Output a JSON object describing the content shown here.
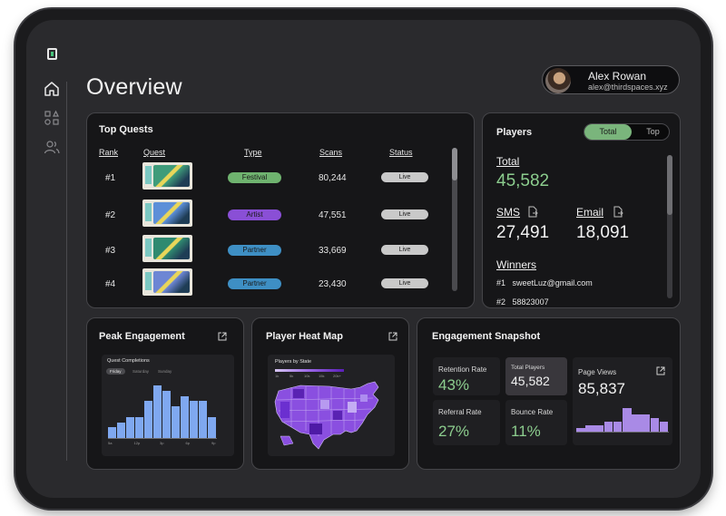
{
  "header": {
    "title": "Overview",
    "user": {
      "name": "Alex Rowan",
      "email": "alex@thirdspaces.xyz"
    }
  },
  "sidebar": {
    "icons": [
      "home-icon",
      "shapes-icon",
      "users-icon"
    ]
  },
  "top_quests": {
    "title": "Top Quests",
    "columns": [
      "Rank",
      "Quest",
      "Type",
      "Scans",
      "Status"
    ],
    "rows": [
      {
        "rank": "#1",
        "type": "Festival",
        "type_color": "#6fb36f",
        "scans": "80,244",
        "status": "Live",
        "thumb_color": "#3f9c7a"
      },
      {
        "rank": "#2",
        "type": "Artist",
        "type_color": "#8a4fd6",
        "scans": "47,551",
        "status": "Live",
        "thumb_color": "#5d8fd8"
      },
      {
        "rank": "#3",
        "type": "Partner",
        "type_color": "#3e8fc4",
        "scans": "33,669",
        "status": "Live",
        "thumb_color": "#2f8a70"
      },
      {
        "rank": "#4",
        "type": "Partner",
        "type_color": "#3e8fc4",
        "scans": "23,430",
        "status": "Live",
        "thumb_color": "#6d86d4"
      }
    ]
  },
  "players": {
    "title": "Players",
    "toggle": {
      "active": "Total",
      "inactive": "Top"
    },
    "total_label": "Total",
    "total_value": "45,582",
    "sms_label": "SMS",
    "sms_value": "27,491",
    "email_label": "Email",
    "email_value": "18,091",
    "winners_label": "Winners",
    "winners": [
      {
        "rank": "#1",
        "name": "sweetLuz@gmail.com"
      },
      {
        "rank": "#2",
        "name": "58823007"
      }
    ]
  },
  "peak_engagement": {
    "title": "Peak Engagement",
    "mini_title": "Quest Completions",
    "tabs": [
      "Friday",
      "Saturday",
      "Sunday"
    ],
    "chart_data": {
      "type": "bar",
      "values": [
        2,
        3,
        4,
        4,
        7,
        10,
        9,
        6,
        8,
        7,
        7,
        4
      ],
      "x_ticks": [
        "5a",
        "12p",
        "3p",
        "6p",
        "9p"
      ],
      "color": "#7fa8f0"
    }
  },
  "heat_map": {
    "title": "Player Heat Map",
    "mini_title": "Players by State",
    "legend": [
      "1k",
      "5k",
      "10k",
      "15k",
      "20k+"
    ]
  },
  "engagement_snapshot": {
    "title": "Engagement Snapshot",
    "retention_label": "Retention Rate",
    "retention_value": "43%",
    "total_players_label": "Total Players",
    "total_players_value": "45,582",
    "referral_label": "Referral Rate",
    "referral_value": "27%",
    "bounce_label": "Bounce Rate",
    "bounce_value": "11%",
    "page_views_label": "Page Views",
    "page_views_value": "85,837",
    "chart_data": {
      "type": "bar",
      "values": [
        1,
        2,
        2,
        3,
        3,
        7,
        5,
        5,
        4,
        3
      ],
      "color": "#a98ae6"
    }
  }
}
